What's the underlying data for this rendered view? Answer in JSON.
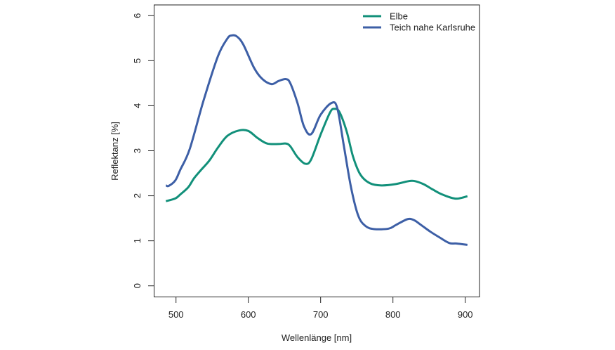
{
  "chart_data": {
    "type": "line",
    "title": "",
    "xlabel": "Wellenlänge [nm]",
    "ylabel": "Reflektanz [%]",
    "xlim": [
      480,
      905
    ],
    "ylim": [
      -0.2,
      6.25
    ],
    "xticks": [
      500,
      600,
      700,
      800,
      900
    ],
    "yticks": [
      0,
      1,
      2,
      3,
      4,
      5,
      6
    ],
    "grid": false,
    "legend_position": "top-right",
    "series": [
      {
        "name": "Elbe",
        "color": "#12907a",
        "x": [
          486,
          499,
          506,
          517,
          525,
          535,
          546,
          558,
          571,
          587,
          600,
          613,
          626,
          642,
          652,
          658,
          668,
          679,
          687,
          700,
          713,
          719,
          726,
          736,
          745,
          755,
          768,
          784,
          804,
          820,
          829,
          842,
          855,
          868,
          885,
          894,
          903
        ],
        "y": [
          1.88,
          1.94,
          2.03,
          2.19,
          2.39,
          2.58,
          2.78,
          3.07,
          3.33,
          3.45,
          3.44,
          3.28,
          3.16,
          3.15,
          3.16,
          3.1,
          2.86,
          2.71,
          2.81,
          3.36,
          3.85,
          3.93,
          3.86,
          3.43,
          2.86,
          2.47,
          2.28,
          2.23,
          2.26,
          2.32,
          2.33,
          2.26,
          2.14,
          2.03,
          1.94,
          1.95,
          1.99
        ]
      },
      {
        "name": "Teich nahe Karlsruhe",
        "color": "#3d5fa6",
        "x": [
          486,
          490,
          499,
          506,
          519,
          538,
          558,
          571,
          577,
          584,
          593,
          608,
          619,
          632,
          642,
          652,
          658,
          668,
          677,
          687,
          700,
          715,
          723,
          732,
          742,
          752,
          762,
          774,
          794,
          804,
          820,
          829,
          839,
          852,
          865,
          878,
          888,
          903
        ],
        "y": [
          2.23,
          2.22,
          2.34,
          2.58,
          3.04,
          4.11,
          5.1,
          5.49,
          5.56,
          5.54,
          5.36,
          4.84,
          4.6,
          4.48,
          4.55,
          4.59,
          4.5,
          4.06,
          3.54,
          3.37,
          3.8,
          4.06,
          3.95,
          3.12,
          2.19,
          1.56,
          1.33,
          1.26,
          1.27,
          1.35,
          1.48,
          1.46,
          1.35,
          1.2,
          1.07,
          0.95,
          0.94,
          0.91
        ]
      }
    ]
  }
}
